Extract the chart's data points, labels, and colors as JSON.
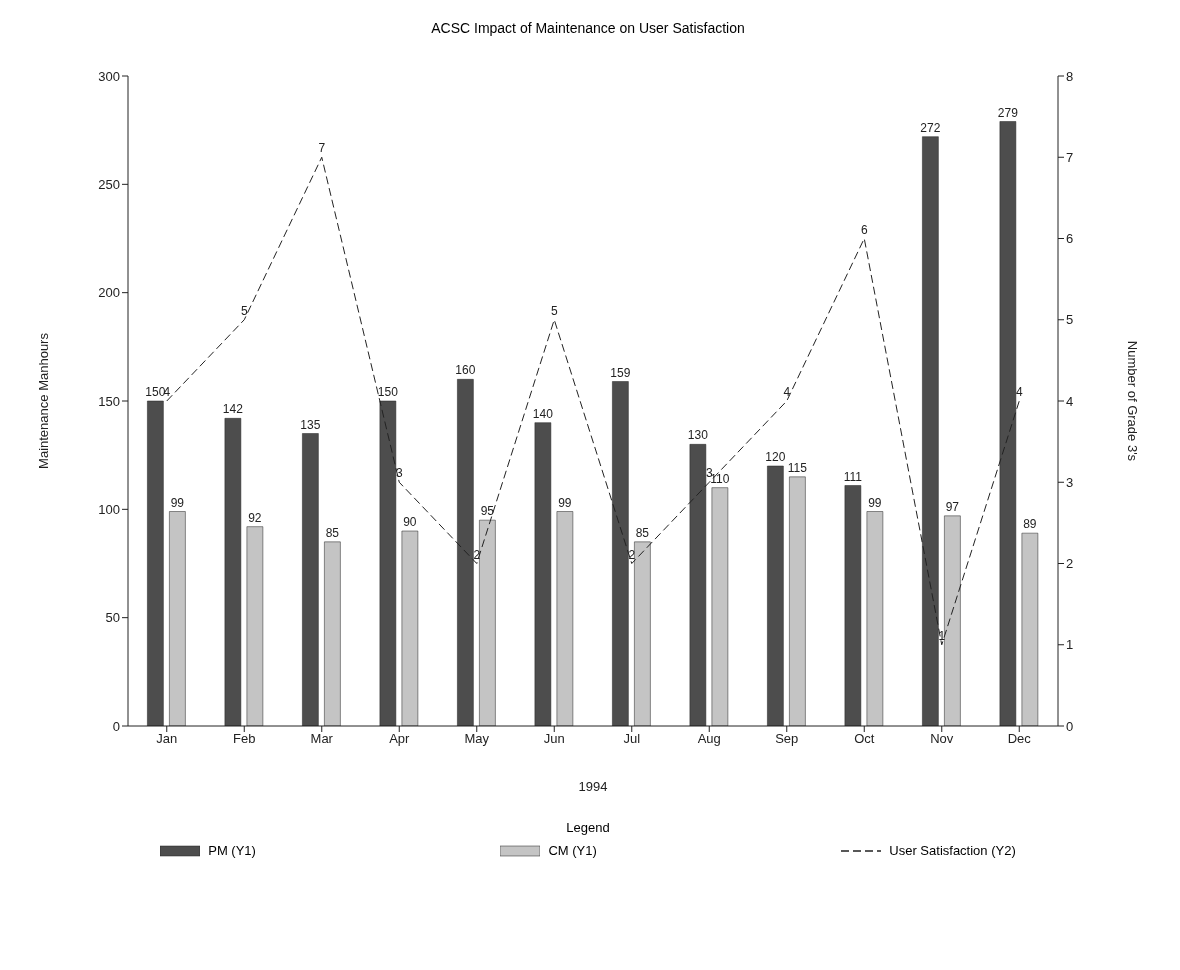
{
  "chart_data": {
    "type": "bar",
    "title": "ACSC Impact of Maintenance on User Satisfaction",
    "xlabel": "1994",
    "ylabel": "Maintenance Manhours",
    "y2label": "Number of Grade 3's",
    "legend_title": "Legend",
    "categories": [
      "Jan",
      "Feb",
      "Mar",
      "Apr",
      "May",
      "Jun",
      "Jul",
      "Aug",
      "Sep",
      "Oct",
      "Nov",
      "Dec"
    ],
    "series": [
      {
        "name": "PM (Y1)",
        "color": "#4d4d4d",
        "values": [
          150,
          142,
          135,
          150,
          160,
          140,
          159,
          130,
          120,
          111,
          272,
          279
        ]
      },
      {
        "name": "CM (Y1)",
        "color": "#c4c4c4",
        "values": [
          99,
          92,
          85,
          90,
          95,
          99,
          85,
          110,
          115,
          99,
          97,
          89
        ]
      },
      {
        "name": "User Satisfaction (Y2)",
        "type": "line",
        "axis": "y2",
        "color": "#222222",
        "line_style": "dashed",
        "values": [
          4,
          5,
          7,
          3,
          2,
          5,
          2,
          3,
          4,
          6,
          1,
          4
        ]
      }
    ],
    "ylim": [
      0,
      300
    ],
    "yticks": [
      0,
      50,
      100,
      150,
      200,
      250,
      300
    ],
    "y2lim": [
      0,
      8
    ],
    "y2ticks": [
      0,
      1,
      2,
      3,
      4,
      5,
      6,
      7,
      8
    ],
    "data_labels": true,
    "legend": "bottom",
    "marker": "none"
  }
}
